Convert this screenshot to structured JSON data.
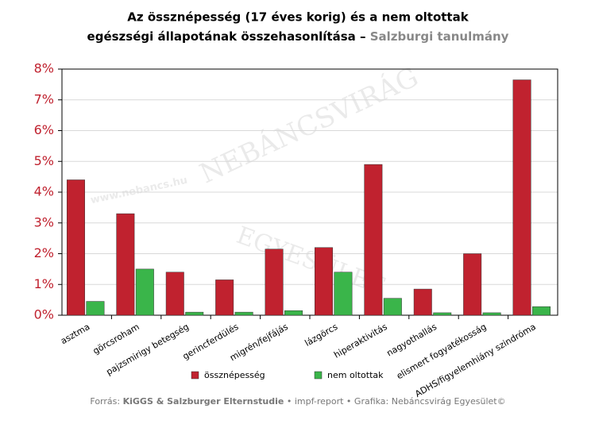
{
  "chart_data": {
    "type": "bar",
    "title": [
      "Az össznépesség (17 éves korig) és a nem oltottak",
      "egészségi állapotának összehasonlítása –"
    ],
    "title_highlight": "Salzburgi tanulmány",
    "watermark": [
      "NEBÁNCSVIRÁG",
      "EGYESÜLET",
      "www.nebancs.hu"
    ],
    "categories": [
      "asztma",
      "görcsroham",
      "pajzsmirigy betegség",
      "gerincferdülés",
      "migrén/fejfájás",
      "lázgörcs",
      "hiperaktivitás",
      "nagyothallás",
      "elismert fogyatékosság",
      "ADHS/figyelemhiány szindróma"
    ],
    "series": [
      {
        "name": "össznépesség",
        "color": "#c0222f",
        "values": [
          4.4,
          3.3,
          1.4,
          1.15,
          2.15,
          2.2,
          4.9,
          0.85,
          2.0,
          7.65
        ]
      },
      {
        "name": "nem oltottak",
        "color": "#3ab54a",
        "values": [
          0.45,
          1.5,
          0.1,
          0.1,
          0.15,
          1.4,
          0.55,
          0.08,
          0.08,
          0.28
        ]
      }
    ],
    "ylim": [
      0,
      8
    ],
    "yticks": [
      {
        "value": 0,
        "label": "0%"
      },
      {
        "value": 1,
        "label": "1%"
      },
      {
        "value": 2,
        "label": "2%"
      },
      {
        "value": 3,
        "label": "3%"
      },
      {
        "value": 4,
        "label": "4%"
      },
      {
        "value": 5,
        "label": "5%"
      },
      {
        "value": 6,
        "label": "6%"
      },
      {
        "value": 7,
        "label": "7%"
      },
      {
        "value": 8,
        "label": "8%"
      }
    ],
    "grid": true,
    "source": [
      "Forrás:",
      "KiGGS & Salzburger Elternstudie",
      "• impf-report • Grafika: Nebáncsvirág Egyesület©"
    ]
  }
}
